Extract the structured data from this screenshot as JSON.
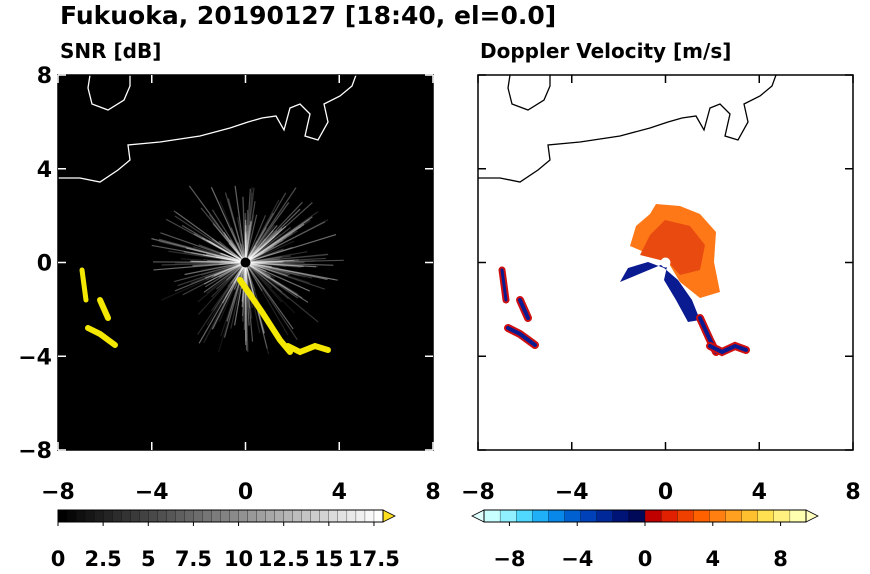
{
  "title": "Fukuoka, 20190127 [18:40, el=0.0]",
  "chart_data": [
    {
      "type": "ppi",
      "title": "SNR [dB]",
      "xlim": [
        -8,
        8
      ],
      "ylim": [
        -8,
        8
      ],
      "xticks": [
        {
          "value": -8,
          "label": "−8"
        },
        {
          "value": -4,
          "label": "−4"
        },
        0,
        4,
        8
      ],
      "yticks": [
        {
          "value": -8,
          "label": "−8"
        },
        {
          "value": -4,
          "label": "−4"
        },
        0,
        4,
        8
      ],
      "show_ytick_labels": true,
      "background": "#000000",
      "coast_color": "#ffffff",
      "colorbar": {
        "lim": [
          0,
          18
        ],
        "ticks": [
          0,
          2.5,
          5,
          7.5,
          10,
          12.5,
          15,
          17.5
        ],
        "colors": [
          "#000000",
          "#ffffff"
        ],
        "extend": "max",
        "extend_color": "#ffe020"
      }
    },
    {
      "type": "ppi",
      "title": "Doppler Velocity [m/s]",
      "xlim": [
        -8,
        8
      ],
      "ylim": [
        -8,
        8
      ],
      "xticks": [
        {
          "value": -8,
          "label": "−8"
        },
        {
          "value": -4,
          "label": "−4"
        },
        0,
        4,
        8
      ],
      "yticks": [
        -8,
        -4,
        0,
        4,
        8
      ],
      "show_ytick_labels": false,
      "background": "#ffffff",
      "coast_color": "#000000",
      "colorbar": {
        "lim": [
          -9.5,
          9.5
        ],
        "ticks": [
          {
            "value": -8,
            "label": "−8"
          },
          {
            "value": -4,
            "label": "−4"
          },
          0,
          4,
          8
        ],
        "colors": [
          "#c8ffff",
          "#90f0ff",
          "#50d8ff",
          "#20b0f8",
          "#0888e8",
          "#0060d0",
          "#0040b8",
          "#002898",
          "#001478",
          "#000858",
          "#c00000",
          "#e02000",
          "#f04000",
          "#ff6000",
          "#ff8010",
          "#ffa020",
          "#ffc030",
          "#ffe050",
          "#fff080",
          "#ffffb0"
        ],
        "extend": "both",
        "extend_color": "#e0ffff"
      }
    }
  ]
}
